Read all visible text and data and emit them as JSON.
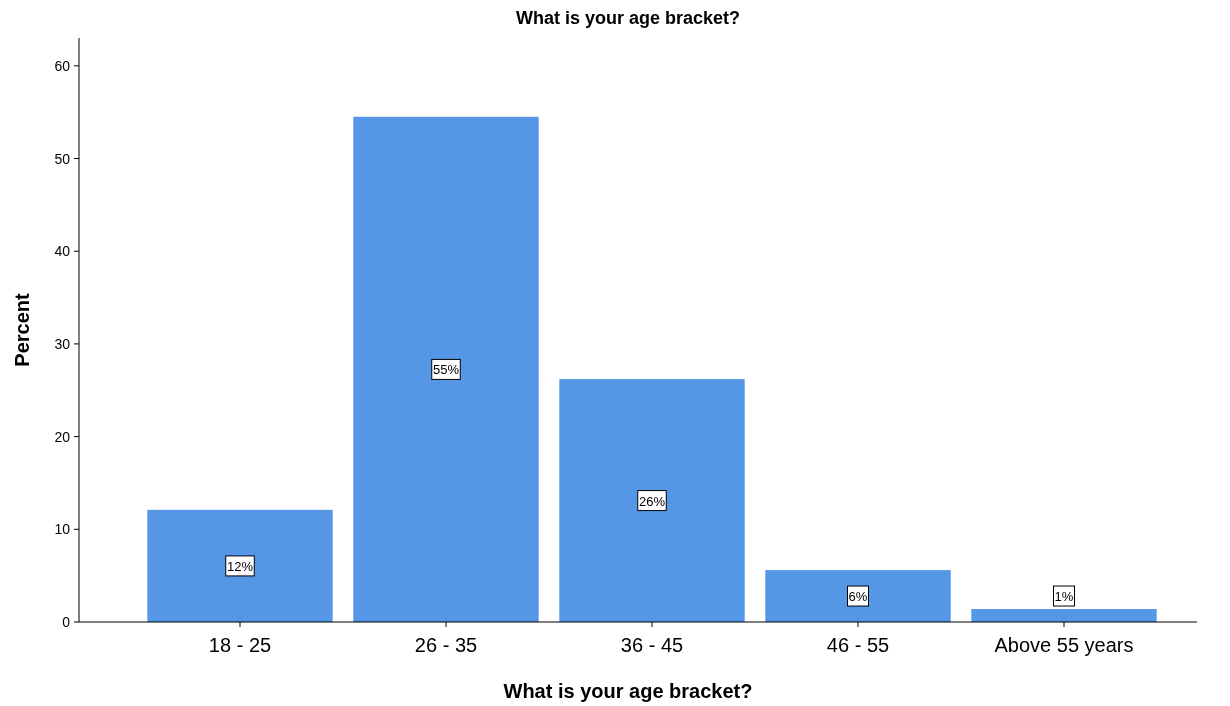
{
  "chart_data": {
    "type": "bar",
    "title": "What is your age bracket?",
    "xlabel": "What is your age bracket?",
    "ylabel": "Percent",
    "categories": [
      "18 - 25",
      "26 - 35",
      "36 - 45",
      "46 - 55",
      "Above 55 years"
    ],
    "values": [
      12.1,
      54.5,
      26.2,
      5.6,
      1.4
    ],
    "value_labels": [
      "12%",
      "55%",
      "26%",
      "6%",
      "1%"
    ],
    "color": "#5596e6",
    "ylim": [
      0,
      63
    ],
    "yticks": [
      0,
      10,
      20,
      30,
      40,
      50,
      60
    ],
    "grid": false
  }
}
